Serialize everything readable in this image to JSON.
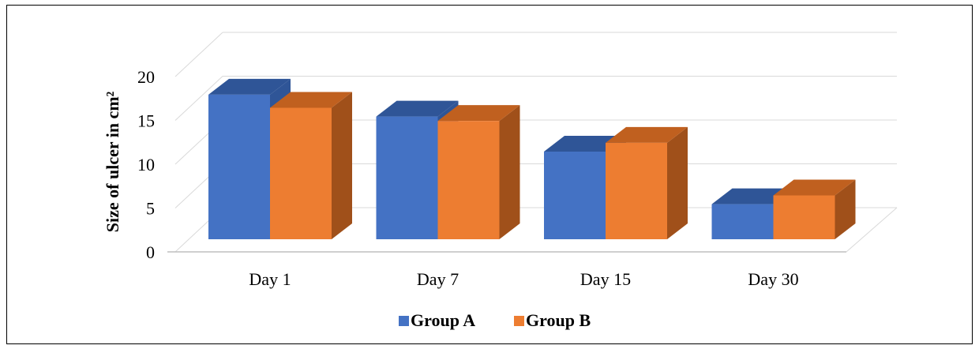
{
  "chart_data": {
    "type": "bar",
    "categories": [
      "Day 1",
      "Day 7",
      "Day 15",
      "Day 30"
    ],
    "series": [
      {
        "name": "Group A",
        "values": [
          16.5,
          14,
          10,
          4
        ],
        "color": "#4472c4",
        "top_color": "#2f5597",
        "side_color": "#2f5597"
      },
      {
        "name": "Group B",
        "values": [
          15,
          13.5,
          11,
          5
        ],
        "color": "#ed7d31",
        "top_color": "#c0601f",
        "side_color": "#a0501a"
      }
    ],
    "title": "",
    "xlabel": "",
    "ylabel": "Size of ulcer in cm²",
    "ylim": [
      0,
      20
    ],
    "yticks": [
      0,
      5,
      10,
      15,
      20
    ],
    "grid": true,
    "legend": "bottom",
    "style": "3d-clustered-column"
  }
}
